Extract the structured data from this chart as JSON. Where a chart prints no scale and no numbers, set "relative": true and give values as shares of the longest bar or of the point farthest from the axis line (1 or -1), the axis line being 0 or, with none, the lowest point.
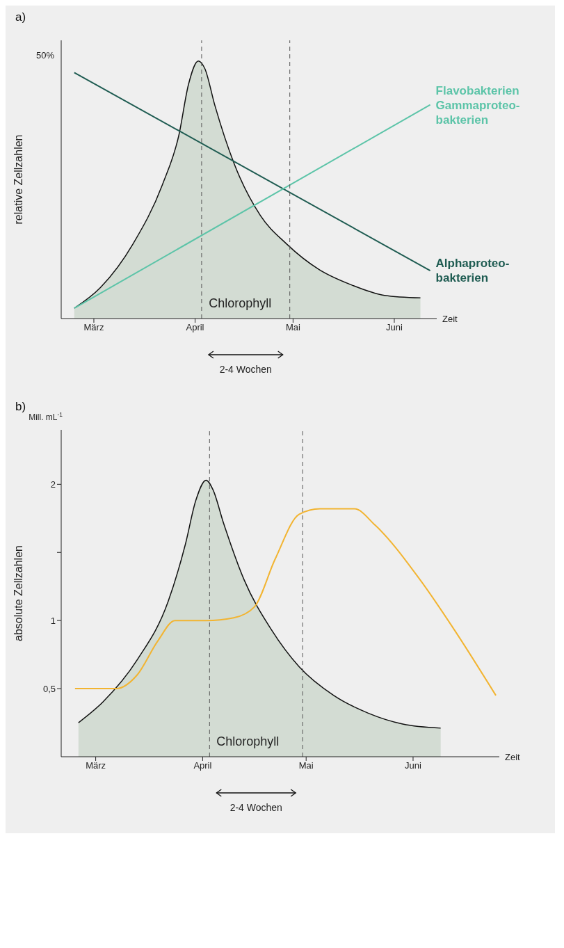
{
  "chart_data": [
    {
      "type": "line",
      "title": "a)",
      "relative": true,
      "ylabel": "relative Zellzahlen",
      "xlabel": "Zeit",
      "xlim": [
        "--02-19",
        "--06-14"
      ],
      "xticks": [
        {
          "value": "--03-01",
          "label": "März"
        },
        {
          "value": "--04-01",
          "label": "April"
        },
        {
          "value": "--05-01",
          "label": "Mai"
        },
        {
          "value": "--06-01",
          "label": "Juni"
        }
      ],
      "grid": false,
      "legend": false,
      "marker": "none",
      "ref_lines": [
        {
          "axis": "x",
          "value": "--04-03",
          "color": "#555555",
          "line_style": "dashed"
        },
        {
          "axis": "x",
          "value": "--04-30",
          "color": "#555555",
          "line_style": "dashed"
        }
      ],
      "annotations": [
        "50%",
        "2-4 Wochen"
      ],
      "series": [
        {
          "name": "Chlorophyll",
          "type": "area",
          "color": "#d3dcd3",
          "x": [
            "--02-23",
            "--03-03",
            "--03-13",
            "--03-22",
            "--03-27",
            "--03-30",
            "--04-02",
            "--04-04",
            "--04-07",
            "--04-13",
            "--04-21",
            "--04-29",
            "--05-09",
            "--05-19",
            "--05-29",
            "--06-09"
          ],
          "values": [
            0.04,
            0.12,
            0.29,
            0.52,
            0.71,
            0.91,
            1.0,
            0.97,
            0.83,
            0.6,
            0.4,
            0.29,
            0.19,
            0.13,
            0.09,
            0.08
          ]
        },
        {
          "name": "Alphaproteo-\nbakterien",
          "color": "#1f5c52",
          "x": [
            "--02-23",
            "--06-12"
          ],
          "values": [
            0.955,
            0.186
          ]
        },
        {
          "name": "Flavobakterien\nGammaproteo-\nbakterien",
          "color": "#5cc4a8",
          "x": [
            "--02-23",
            "--06-12"
          ],
          "values": [
            0.04,
            0.83
          ]
        }
      ]
    },
    {
      "type": "line",
      "title": "b)",
      "ylabel": "absolute Zellzahlen",
      "xlabel": "Zeit",
      "xlim": [
        "--02-19",
        "--06-26"
      ],
      "ylim": [
        0,
        2.4
      ],
      "xticks": [
        {
          "value": "--03-01",
          "label": "März"
        },
        {
          "value": "--04-01",
          "label": "April"
        },
        {
          "value": "--05-01",
          "label": "Mai"
        },
        {
          "value": "--06-01",
          "label": "Juni"
        }
      ],
      "yticks": [
        {
          "value": 0.5,
          "label": "0,5"
        },
        1,
        {
          "value": 1.5,
          "label": null
        },
        2
      ],
      "grid": false,
      "legend": false,
      "marker": "none",
      "ref_lines": [
        {
          "axis": "x",
          "value": "--04-03",
          "color": "#555555",
          "line_style": "dashed"
        },
        {
          "axis": "x",
          "value": "--04-30",
          "color": "#555555",
          "line_style": "dashed"
        }
      ],
      "annotations": [
        "Mill. mL$^{-1}$",
        "2-4 Wochen"
      ],
      "series": [
        {
          "name": "Chlorophyll",
          "type": "area",
          "color": "#d3dcd3",
          "x": [
            "--02-24",
            "--03-03",
            "--03-13",
            "--03-22",
            "--03-27",
            "--03-30",
            "--04-02",
            "--04-04",
            "--04-07",
            "--04-13",
            "--04-21",
            "--04-29",
            "--05-09",
            "--05-19",
            "--05-29",
            "--06-09"
          ],
          "values": [
            0.25,
            0.4,
            0.71,
            1.14,
            1.56,
            1.88,
            2.03,
            1.96,
            1.72,
            1.3,
            0.93,
            0.66,
            0.45,
            0.32,
            0.24,
            0.21
          ]
        },
        {
          "color": "#f2b431",
          "x": [
            "--02-23",
            "--03-07",
            "--03-13",
            "--03-19",
            "--03-24",
            "--04-02",
            "--04-10",
            "--04-16",
            "--04-22",
            "--04-29",
            "--05-05",
            "--05-15",
            "--05-21",
            "--06-03",
            "--06-13",
            "--06-25"
          ],
          "values": [
            0.5,
            0.5,
            0.6,
            0.85,
            1.0,
            1.0,
            1.02,
            1.1,
            1.45,
            1.78,
            1.82,
            1.82,
            1.7,
            1.3,
            0.93,
            0.45
          ]
        }
      ]
    }
  ]
}
